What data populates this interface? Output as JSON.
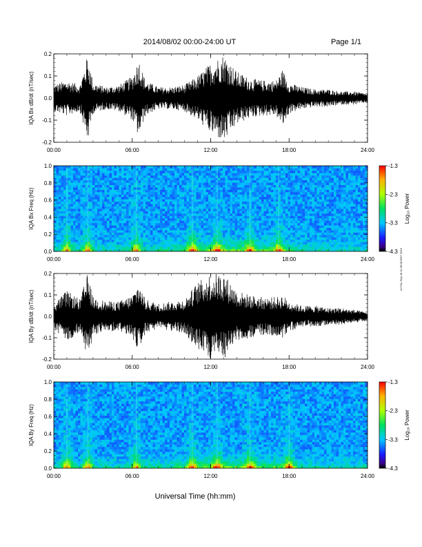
{
  "header": {
    "title": "2014/08/02  00:00-24:00 UT",
    "page": "Page 1/1"
  },
  "footer": {
    "xlabel": "Universal Time (hh:mm)"
  },
  "side_note": "rel Thu Sep 18 11:45:08 EDT 2019",
  "chart_data": [
    {
      "type": "line",
      "ylabel": "IQA Bx dB/dt (nT/sec)",
      "ylim": [
        -0.2,
        0.2
      ],
      "yticks": [
        "0.2",
        "0.1",
        "0.0",
        "-0.1",
        "-0.2"
      ],
      "xticks": [
        "00:00",
        "06:00",
        "12:00",
        "18:00",
        "24:00"
      ],
      "xlim_hours": [
        0,
        24
      ],
      "envelope": {
        "hour": [
          0,
          1,
          2,
          2.6,
          3,
          4,
          5,
          6,
          6.5,
          7,
          8,
          9,
          10,
          11,
          12,
          13,
          14,
          15,
          16,
          17,
          17.5,
          18,
          19,
          20,
          21,
          22,
          23,
          24
        ],
        "amplitude": [
          0.06,
          0.08,
          0.06,
          0.2,
          0.07,
          0.05,
          0.06,
          0.1,
          0.18,
          0.08,
          0.05,
          0.05,
          0.06,
          0.1,
          0.16,
          0.2,
          0.12,
          0.09,
          0.08,
          0.08,
          0.13,
          0.07,
          0.05,
          0.04,
          0.04,
          0.03,
          0.03,
          0.02
        ]
      }
    },
    {
      "type": "heatmap",
      "ylabel": "IQA Bx Freq (Hz)",
      "ylim": [
        0,
        1.0
      ],
      "yticks": [
        "1.0",
        "0.8",
        "0.6",
        "0.4",
        "0.2",
        "0.0"
      ],
      "xticks": [
        "00:00",
        "06:00",
        "12:00",
        "18:00",
        "24:00"
      ],
      "colorbar": {
        "label": "Log₁₀ Power",
        "ticks": [
          "-1.3",
          "-2.3",
          "-3.3",
          "-4.3"
        ],
        "range": [
          -4.3,
          -1.3
        ]
      },
      "bright_hours": [
        1.0,
        2.6,
        6.3,
        10.6,
        12.5,
        15.0,
        17.2
      ]
    },
    {
      "type": "line",
      "ylabel": "IQA By dB/dt (nT/sec)",
      "ylim": [
        -0.2,
        0.2
      ],
      "yticks": [
        "0.2",
        "0.1",
        "0.0",
        "-0.1",
        "-0.2"
      ],
      "xticks": [
        "00:00",
        "06:00",
        "12:00",
        "18:00",
        "24:00"
      ],
      "xlim_hours": [
        0,
        24
      ],
      "envelope": {
        "hour": [
          0,
          1,
          2,
          2.6,
          3,
          4,
          5,
          6,
          6.5,
          7,
          8,
          9,
          10,
          11,
          12,
          13,
          14,
          15,
          16,
          17,
          17.5,
          18,
          19,
          20,
          21,
          22,
          23,
          24
        ],
        "amplitude": [
          0.06,
          0.12,
          0.08,
          0.2,
          0.09,
          0.07,
          0.07,
          0.1,
          0.16,
          0.08,
          0.06,
          0.07,
          0.08,
          0.16,
          0.2,
          0.2,
          0.12,
          0.1,
          0.09,
          0.09,
          0.1,
          0.07,
          0.05,
          0.05,
          0.04,
          0.04,
          0.03,
          0.02
        ]
      }
    },
    {
      "type": "heatmap",
      "ylabel": "IQA By Freq (Hz)",
      "ylim": [
        0,
        1.0
      ],
      "yticks": [
        "1.0",
        "0.8",
        "0.6",
        "0.4",
        "0.2",
        "0.0"
      ],
      "xticks": [
        "00:00",
        "06:00",
        "12:00",
        "18:00",
        "24:00"
      ],
      "colorbar": {
        "label": "Log₁₀ Power",
        "ticks": [
          "-1.3",
          "-2.3",
          "-3.3",
          "-4.3"
        ],
        "range": [
          -4.3,
          -1.3
        ]
      },
      "bright_hours": [
        1.0,
        2.6,
        6.3,
        10.6,
        12.5,
        15.0,
        18.0
      ]
    }
  ]
}
